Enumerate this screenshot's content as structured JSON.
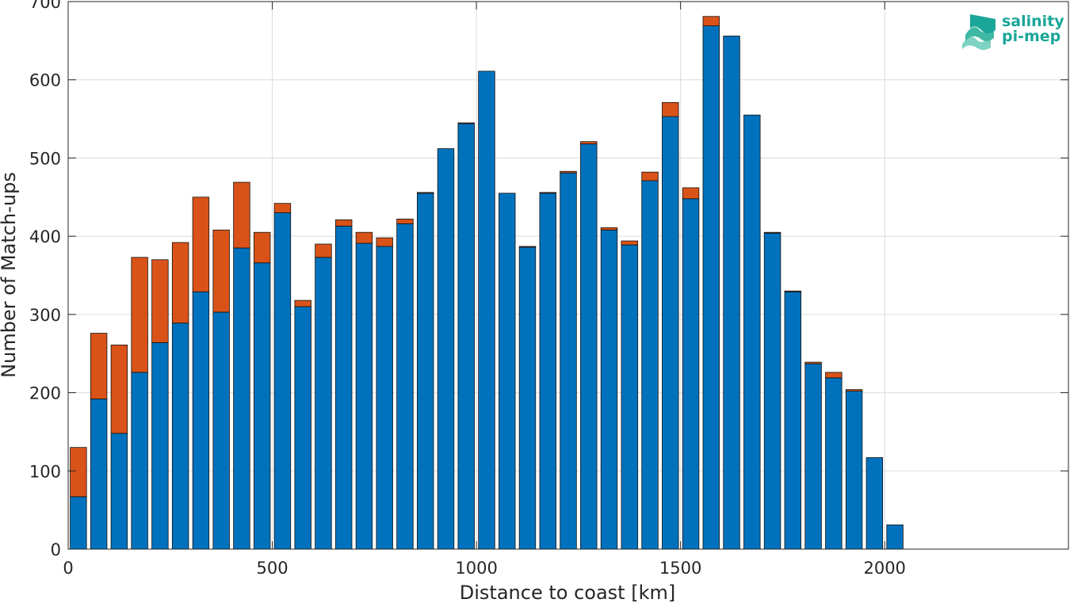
{
  "chart_data": {
    "type": "bar",
    "stacked": true,
    "title": "",
    "xlabel": "Distance to coast [km]",
    "ylabel": "Number of Match-ups",
    "xlim": [
      0,
      2450
    ],
    "ylim": [
      0,
      700
    ],
    "xticks": [
      0,
      500,
      1000,
      1500,
      2000
    ],
    "yticks": [
      0,
      100,
      200,
      300,
      400,
      500,
      600,
      700
    ],
    "grid": true,
    "bin_width": 50,
    "x": [
      25,
      75,
      125,
      175,
      225,
      275,
      325,
      375,
      425,
      475,
      525,
      575,
      625,
      675,
      725,
      775,
      825,
      875,
      925,
      975,
      1025,
      1075,
      1125,
      1175,
      1225,
      1275,
      1325,
      1375,
      1425,
      1475,
      1525,
      1575,
      1625,
      1675,
      1725,
      1775,
      1825,
      1875,
      1925,
      1975,
      2025
    ],
    "series": [
      {
        "color": "#0072BD",
        "values": [
          67,
          192,
          148,
          226,
          264,
          289,
          329,
          303,
          385,
          366,
          430,
          310,
          373,
          413,
          391,
          387,
          416,
          455,
          512,
          544,
          611,
          455,
          386,
          455,
          481,
          518,
          408,
          389,
          471,
          553,
          448,
          669,
          656,
          555,
          404,
          329,
          237,
          219,
          202,
          117,
          31
        ]
      },
      {
        "color": "#D95319",
        "values": [
          63,
          84,
          113,
          147,
          106,
          103,
          121,
          105,
          84,
          39,
          12,
          8,
          17,
          8,
          14,
          11,
          6,
          1,
          0,
          1,
          0,
          0,
          1,
          1,
          2,
          3,
          3,
          5,
          11,
          18,
          14,
          12,
          0,
          0,
          1,
          1,
          2,
          7,
          2,
          0,
          0
        ]
      }
    ]
  },
  "logo": {
    "line1": "salinity",
    "line2": "pi-mep"
  }
}
